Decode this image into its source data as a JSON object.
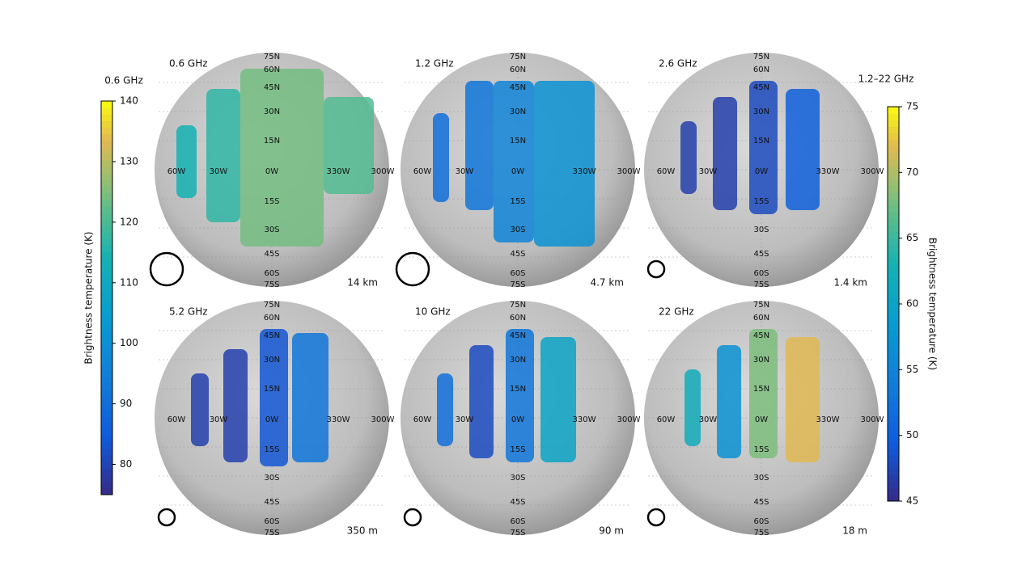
{
  "colorbars": [
    {
      "title": "0.6 GHz",
      "label": "Brightness temperature (K)",
      "range": [
        75,
        140
      ],
      "ticks": [
        80,
        90,
        100,
        110,
        120,
        130,
        140
      ]
    },
    {
      "title": "1.2–22 GHz",
      "label": "Brightness temperature (K)",
      "range": [
        45,
        75
      ],
      "ticks": [
        45,
        50,
        55,
        60,
        65,
        70,
        75
      ]
    }
  ],
  "latitude_labels": [
    "75N",
    "60N",
    "45N",
    "30N",
    "15N",
    "0W",
    "15S",
    "30S",
    "45S",
    "60S",
    "75S"
  ],
  "longitude_labels": [
    "60W",
    "30W",
    "330W",
    "300W"
  ],
  "panels": [
    {
      "frequency": "0.6 GHz",
      "resolution": "14 km",
      "colorbar": 0,
      "swath_temperatures": [
        114,
        117,
        124,
        121
      ]
    },
    {
      "frequency": "1.2 GHz",
      "resolution": "4.7 km",
      "colorbar": 1,
      "swath_temperatures": [
        52,
        53,
        55,
        57
      ]
    },
    {
      "frequency": "2.6 GHz",
      "resolution": "1.4 km",
      "colorbar": 1,
      "swath_temperatures": [
        47,
        47,
        48,
        50
      ]
    },
    {
      "frequency": "5.2 GHz",
      "resolution": "350 m",
      "colorbar": 1,
      "swath_temperatures": [
        47,
        47,
        49,
        53
      ]
    },
    {
      "frequency": "10 GHz",
      "resolution": "90 m",
      "colorbar": 1,
      "swath_temperatures": [
        52,
        48,
        53,
        60
      ]
    },
    {
      "frequency": "22 GHz",
      "resolution": "18 m",
      "colorbar": 1,
      "swath_temperatures": [
        62,
        57,
        68,
        72
      ]
    }
  ]
}
